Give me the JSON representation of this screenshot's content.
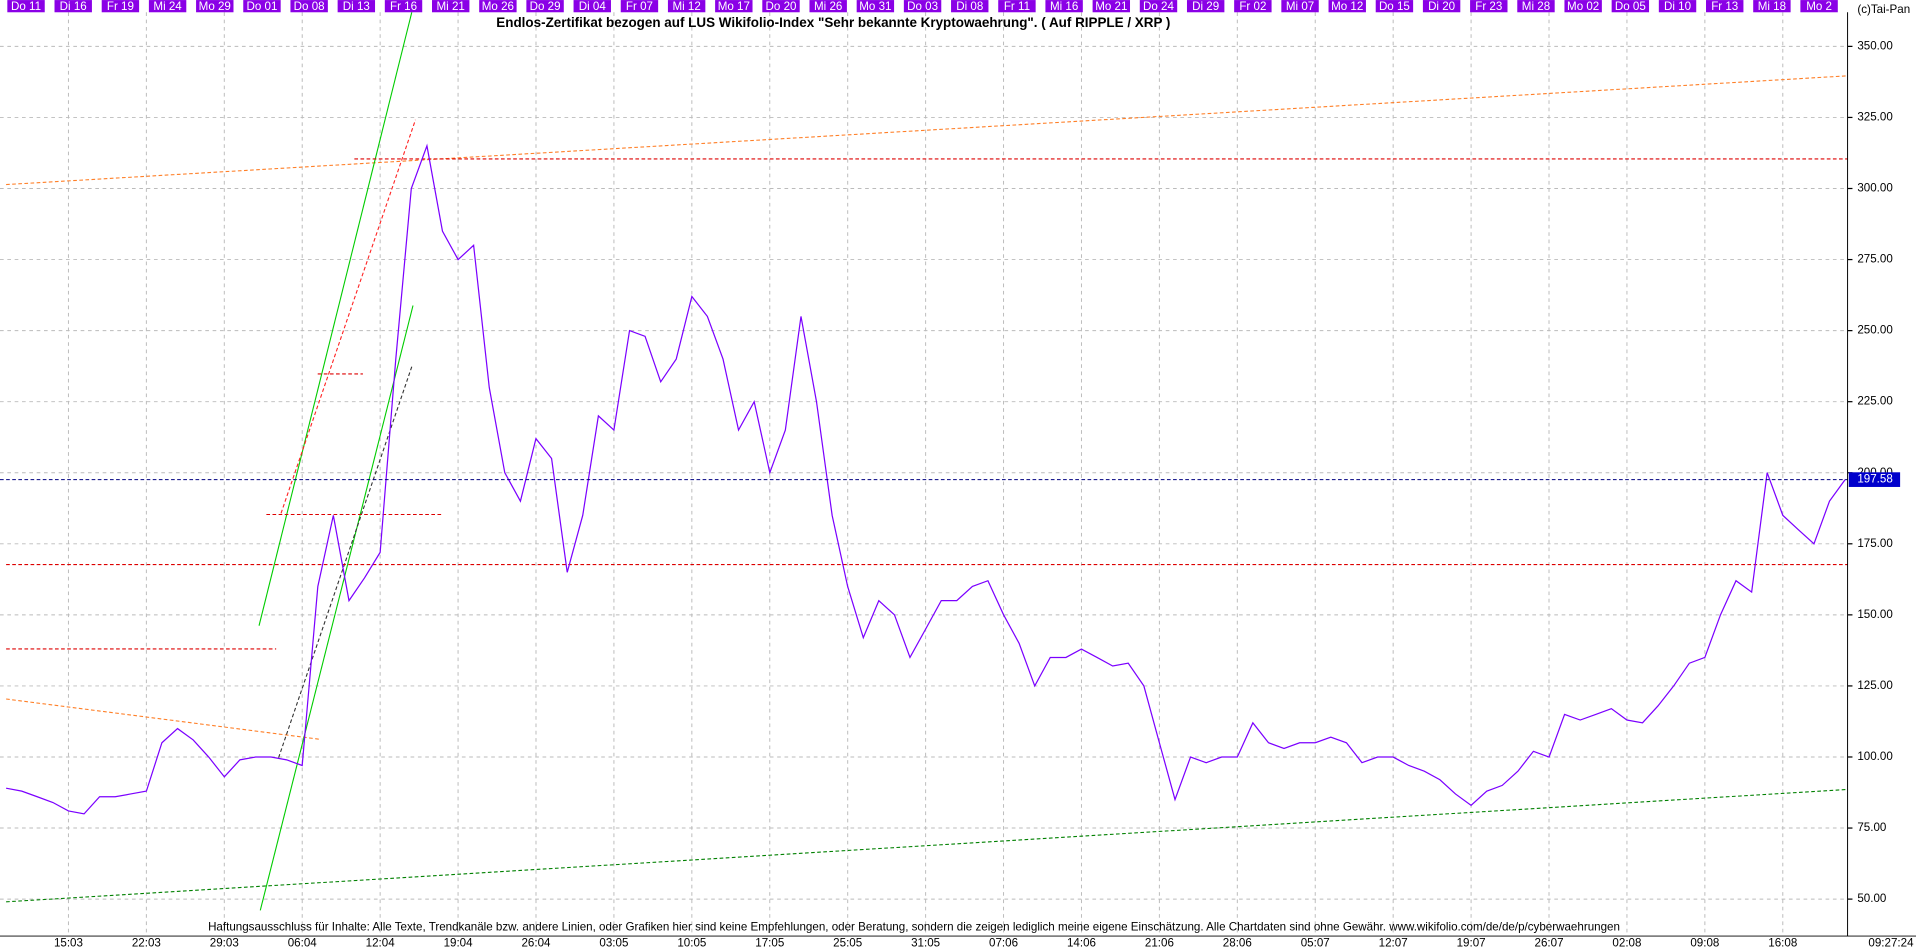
{
  "chart_data": {
    "type": "line",
    "title": "Endlos-Zertifikat bezogen auf LUS Wikifolio-Index \"Sehr bekannte Kryptowaehrung\". ( Auf RIPPLE / XRP )",
    "copyright": "(c)Tai-Pan",
    "footnote": "Haftungsausschluss für Inhalte: Alle Texte, Trendkanäle bzw. andere Linien, oder Grafiken hier sind keine Empfehlungen, oder Beratung, sondern die zeigen lediglich meine eigene Einschätzung. Alle Chartdaten sind ohne Gewähr.  www.wikifolio.com/de/de/p/cyberwaehrungen",
    "time": "09:27:24",
    "top_labels": [
      "Do 11",
      "Di 16",
      "Fr 19",
      "Mi 24",
      "Mo 29",
      "Do 01",
      "Do 08",
      "Di 13",
      "Fr 16",
      "Mi 21",
      "Mo 26",
      "Do 29",
      "Di 04",
      "Fr 07",
      "Mi 12",
      "Mo 17",
      "Do 20",
      "Mi 26",
      "Mo 31",
      "Do 03",
      "Di 08",
      "Fr 11",
      "Mi 16",
      "Mo 21",
      "Do 24",
      "Di 29",
      "Fr 02",
      "Mi 07",
      "Mo 12",
      "Do 15",
      "Di 20",
      "Fr 23",
      "Mi 28",
      "Mo 02",
      "Do 05",
      "Di 10",
      "Fr 13",
      "Mi 18",
      "Mo 2"
    ],
    "categories": [
      null,
      null,
      null,
      null,
      "15:03",
      null,
      null,
      null,
      null,
      "22:03",
      null,
      null,
      null,
      null,
      "29:03",
      null,
      null,
      null,
      null,
      "06:04",
      null,
      null,
      null,
      null,
      "12:04",
      null,
      null,
      null,
      null,
      "19:04",
      null,
      null,
      null,
      null,
      "26:04",
      null,
      null,
      null,
      null,
      "03:05",
      null,
      null,
      null,
      null,
      "10:05",
      null,
      null,
      null,
      null,
      "17:05",
      null,
      null,
      null,
      null,
      "25:05",
      null,
      null,
      null,
      null,
      "31:05",
      null,
      null,
      null,
      null,
      "07:06",
      null,
      null,
      null,
      null,
      "14:06",
      null,
      null,
      null,
      null,
      "21:06",
      null,
      null,
      null,
      null,
      "28:06",
      null,
      null,
      null,
      null,
      "05:07",
      null,
      null,
      null,
      null,
      "12:07",
      null,
      null,
      null,
      null,
      "19:07",
      null,
      null,
      null,
      null,
      "26:07",
      null,
      null,
      null,
      null,
      "02:08",
      null,
      null,
      null,
      null,
      "09:08",
      null,
      null,
      null,
      null,
      "16:08",
      null,
      null,
      null,
      null
    ],
    "series": [
      {
        "color": "#7b00ff",
        "values": [
          89,
          88,
          86,
          84,
          81,
          80,
          86,
          86,
          87,
          88,
          105,
          110,
          106,
          100,
          93,
          99,
          100,
          100,
          99,
          97,
          160,
          185,
          155,
          163,
          172,
          240,
          300,
          315,
          285,
          275,
          280,
          230,
          200,
          190,
          212,
          205,
          165,
          185,
          220,
          215,
          250,
          248,
          232,
          240,
          262,
          255,
          240,
          215,
          225,
          200,
          215,
          255,
          225,
          185,
          160,
          142,
          155,
          150,
          135,
          145,
          155,
          155,
          160,
          162,
          150,
          140,
          125,
          135,
          135,
          138,
          135,
          132,
          133,
          125,
          105,
          85,
          100,
          98,
          100,
          100,
          112,
          105,
          103,
          105,
          105,
          107,
          105,
          98,
          100,
          100,
          97,
          95,
          92,
          87,
          83,
          88,
          90,
          95,
          102,
          100,
          115,
          113,
          115,
          117,
          113,
          112,
          118,
          125,
          133,
          135,
          150,
          162,
          158,
          200,
          185,
          180,
          175,
          190,
          197.58
        ]
      }
    ],
    "last_value": 197.58,
    "last_value_label": "197.58",
    "ylim": [
      37,
      362
    ],
    "yticks": [
      {
        "value": 50,
        "label": "50.00"
      },
      {
        "value": 75,
        "label": "75.00"
      },
      {
        "value": 100,
        "label": "100.00"
      },
      {
        "value": 125,
        "label": "125.00"
      },
      {
        "value": 150,
        "label": "150.00"
      },
      {
        "value": 175,
        "label": "175.00"
      },
      {
        "value": 200,
        "label": "200.00"
      },
      {
        "value": 225,
        "label": "225.00"
      },
      {
        "value": 250,
        "label": "250.00"
      },
      {
        "value": 275,
        "label": "275.00"
      },
      {
        "value": 300,
        "label": "300.00"
      },
      {
        "value": 325,
        "label": "325.00"
      },
      {
        "value": 350,
        "label": "350.00"
      }
    ],
    "grid": true
  }
}
